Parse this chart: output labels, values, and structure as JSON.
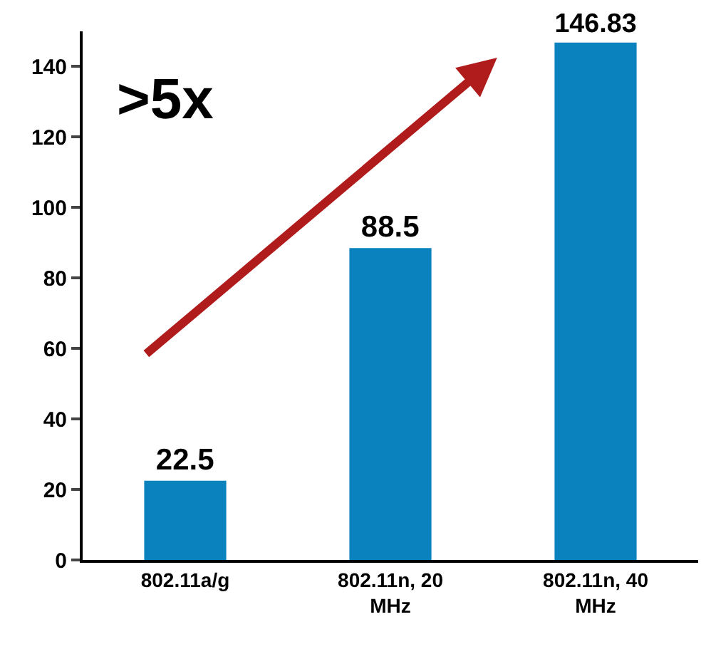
{
  "chart_data": {
    "type": "bar",
    "categories": [
      "802.11a/g",
      "802.11n, 20 MHz",
      "802.11n, 40 MHz"
    ],
    "values": [
      22.5,
      88.5,
      146.83
    ],
    "color": "#0a82bd",
    "data_labels": true,
    "grid": false,
    "legend": false,
    "ylim": [
      0,
      150
    ],
    "yticks": [
      0,
      20,
      40,
      60,
      80,
      100,
      120,
      140
    ],
    "annotations": [
      ">5x"
    ]
  }
}
